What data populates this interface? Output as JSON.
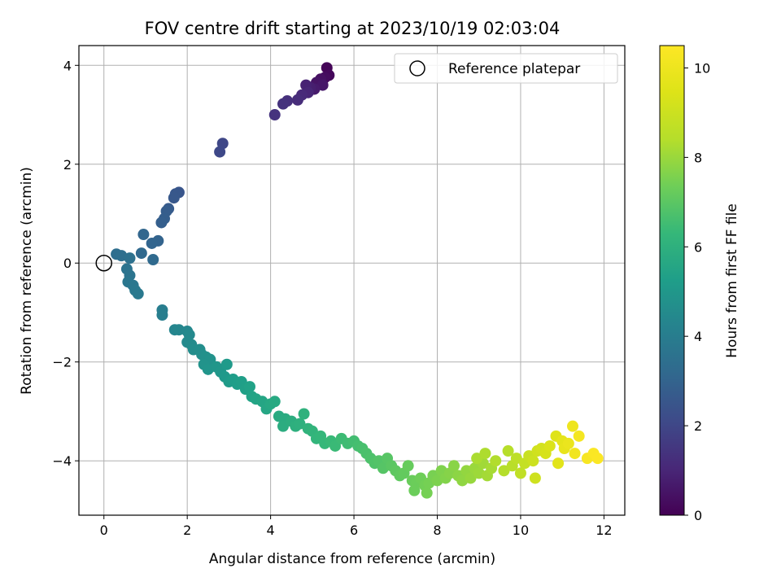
{
  "chart_data": {
    "type": "scatter",
    "title": "FOV centre drift starting at 2023/10/19 02:03:04",
    "xlabel": "Angular distance from reference (arcmin)",
    "ylabel": "Rotation from reference (arcmin)",
    "xlim": [
      -0.6,
      12.5
    ],
    "ylim": [
      -5.1,
      4.4
    ],
    "xticks": [
      0,
      2,
      4,
      6,
      8,
      10,
      12
    ],
    "yticks": [
      -4,
      -2,
      0,
      2,
      4
    ],
    "grid": true,
    "legend": {
      "placement": "upper-right",
      "entries": [
        "Reference platepar"
      ]
    },
    "reference_point": {
      "x": 0,
      "y": 0
    },
    "colorbar": {
      "label": "Hours from first FF file",
      "colormap": "viridis",
      "range": [
        0,
        10.5
      ],
      "ticks": [
        0,
        2,
        4,
        6,
        8,
        10
      ]
    },
    "points": [
      [
        5.35,
        3.95,
        0.1
      ],
      [
        5.4,
        3.8,
        0.2
      ],
      [
        5.3,
        3.75,
        0.3
      ],
      [
        5.2,
        3.72,
        0.4
      ],
      [
        5.1,
        3.65,
        0.5
      ],
      [
        5.25,
        3.6,
        0.6
      ],
      [
        5.05,
        3.52,
        0.7
      ],
      [
        4.95,
        3.55,
        0.8
      ],
      [
        4.85,
        3.6,
        0.9
      ],
      [
        4.9,
        3.45,
        1.0
      ],
      [
        4.75,
        3.4,
        1.1
      ],
      [
        4.65,
        3.3,
        1.2
      ],
      [
        4.4,
        3.28,
        1.3
      ],
      [
        4.3,
        3.22,
        1.35
      ],
      [
        4.1,
        3.0,
        1.4
      ],
      [
        2.85,
        2.42,
        2.0
      ],
      [
        2.78,
        2.25,
        2.05
      ],
      [
        1.8,
        1.43,
        2.5
      ],
      [
        1.72,
        1.4,
        2.55
      ],
      [
        1.68,
        1.32,
        2.6
      ],
      [
        1.55,
        1.1,
        2.7
      ],
      [
        1.5,
        1.05,
        2.75
      ],
      [
        1.45,
        0.9,
        2.8
      ],
      [
        1.38,
        0.82,
        2.85
      ],
      [
        1.3,
        0.45,
        3.0
      ],
      [
        1.15,
        0.4,
        3.05
      ],
      [
        0.95,
        0.58,
        3.1
      ],
      [
        0.9,
        0.2,
        3.2
      ],
      [
        1.18,
        0.07,
        3.25
      ],
      [
        0.3,
        0.18,
        3.4
      ],
      [
        0.42,
        0.15,
        3.45
      ],
      [
        0.62,
        0.1,
        3.5
      ],
      [
        0.55,
        -0.12,
        3.6
      ],
      [
        0.62,
        -0.25,
        3.65
      ],
      [
        0.58,
        -0.38,
        3.7
      ],
      [
        0.7,
        -0.45,
        3.75
      ],
      [
        0.75,
        -0.55,
        3.8
      ],
      [
        0.82,
        -0.62,
        3.85
      ],
      [
        1.4,
        -0.95,
        4.0
      ],
      [
        1.4,
        -1.05,
        4.05
      ],
      [
        1.7,
        -1.35,
        4.3
      ],
      [
        1.8,
        -1.35,
        4.35
      ],
      [
        2.0,
        -1.38,
        4.4
      ],
      [
        2.05,
        -1.45,
        4.45
      ],
      [
        2.0,
        -1.6,
        4.5
      ],
      [
        2.1,
        -1.65,
        4.55
      ],
      [
        2.15,
        -1.75,
        4.6
      ],
      [
        2.3,
        -1.75,
        4.65
      ],
      [
        2.35,
        -1.85,
        4.7
      ],
      [
        2.45,
        -1.9,
        4.75
      ],
      [
        2.55,
        -1.95,
        4.8
      ],
      [
        2.4,
        -2.05,
        4.85
      ],
      [
        2.5,
        -2.15,
        4.9
      ],
      [
        2.7,
        -2.1,
        4.95
      ],
      [
        2.8,
        -2.2,
        5.0
      ],
      [
        2.9,
        -2.3,
        5.05
      ],
      [
        2.95,
        -2.05,
        5.1
      ],
      [
        3.0,
        -2.4,
        5.15
      ],
      [
        3.1,
        -2.35,
        5.2
      ],
      [
        3.2,
        -2.45,
        5.25
      ],
      [
        3.3,
        -2.4,
        5.3
      ],
      [
        3.4,
        -2.55,
        5.35
      ],
      [
        3.5,
        -2.5,
        5.4
      ],
      [
        3.55,
        -2.7,
        5.45
      ],
      [
        3.65,
        -2.75,
        5.5
      ],
      [
        3.8,
        -2.8,
        5.55
      ],
      [
        3.9,
        -2.95,
        5.6
      ],
      [
        4.0,
        -2.85,
        5.65
      ],
      [
        4.1,
        -2.8,
        5.7
      ],
      [
        4.2,
        -3.1,
        5.75
      ],
      [
        4.35,
        -3.15,
        5.8
      ],
      [
        4.3,
        -3.3,
        5.85
      ],
      [
        4.5,
        -3.2,
        5.9
      ],
      [
        4.6,
        -3.3,
        5.95
      ],
      [
        4.7,
        -3.25,
        6.0
      ],
      [
        4.8,
        -3.05,
        6.05
      ],
      [
        4.9,
        -3.35,
        6.1
      ],
      [
        5.0,
        -3.4,
        6.15
      ],
      [
        5.1,
        -3.55,
        6.2
      ],
      [
        5.2,
        -3.5,
        6.25
      ],
      [
        5.3,
        -3.65,
        6.3
      ],
      [
        5.45,
        -3.6,
        6.35
      ],
      [
        5.55,
        -3.7,
        6.4
      ],
      [
        5.7,
        -3.55,
        6.45
      ],
      [
        5.85,
        -3.65,
        6.5
      ],
      [
        6.0,
        -3.6,
        6.55
      ],
      [
        6.1,
        -3.7,
        6.6
      ],
      [
        6.2,
        -3.75,
        6.65
      ],
      [
        6.3,
        -3.85,
        6.7
      ],
      [
        6.4,
        -3.95,
        6.75
      ],
      [
        6.5,
        -4.05,
        6.8
      ],
      [
        6.6,
        -4.0,
        6.85
      ],
      [
        6.7,
        -4.15,
        6.9
      ],
      [
        6.8,
        -3.95,
        6.95
      ],
      [
        6.9,
        -4.1,
        7.0
      ],
      [
        7.0,
        -4.2,
        7.05
      ],
      [
        7.1,
        -4.3,
        7.1
      ],
      [
        7.2,
        -4.25,
        7.15
      ],
      [
        7.3,
        -4.1,
        7.2
      ],
      [
        7.4,
        -4.4,
        7.25
      ],
      [
        7.5,
        -4.45,
        7.3
      ],
      [
        7.6,
        -4.35,
        7.35
      ],
      [
        7.7,
        -4.5,
        7.4
      ],
      [
        7.8,
        -4.45,
        7.45
      ],
      [
        7.9,
        -4.3,
        7.5
      ],
      [
        8.0,
        -4.4,
        7.55
      ],
      [
        8.1,
        -4.2,
        7.6
      ],
      [
        8.2,
        -4.35,
        7.65
      ],
      [
        8.3,
        -4.25,
        7.7
      ],
      [
        8.4,
        -4.1,
        7.75
      ],
      [
        8.5,
        -4.3,
        7.8
      ],
      [
        8.6,
        -4.4,
        7.85
      ],
      [
        8.7,
        -4.2,
        7.9
      ],
      [
        8.8,
        -4.35,
        7.95
      ],
      [
        8.9,
        -4.15,
        8.0
      ],
      [
        9.0,
        -4.25,
        8.05
      ],
      [
        9.1,
        -4.05,
        8.1
      ],
      [
        9.2,
        -4.3,
        8.15
      ],
      [
        9.3,
        -4.15,
        8.2
      ],
      [
        7.45,
        -4.6,
        7.3
      ],
      [
        7.75,
        -4.65,
        7.45
      ],
      [
        8.95,
        -3.95,
        8.25
      ],
      [
        9.15,
        -3.85,
        8.3
      ],
      [
        9.4,
        -4.0,
        8.35
      ],
      [
        9.6,
        -4.2,
        8.4
      ],
      [
        9.7,
        -3.8,
        8.45
      ],
      [
        9.8,
        -4.1,
        8.5
      ],
      [
        9.9,
        -3.95,
        8.6
      ],
      [
        10.0,
        -4.25,
        8.7
      ],
      [
        10.1,
        -4.05,
        8.8
      ],
      [
        10.2,
        -3.9,
        8.9
      ],
      [
        10.3,
        -4.0,
        9.0
      ],
      [
        10.35,
        -4.35,
        9.05
      ],
      [
        10.4,
        -3.8,
        9.1
      ],
      [
        10.5,
        -3.75,
        9.2
      ],
      [
        10.6,
        -3.85,
        9.3
      ],
      [
        10.7,
        -3.7,
        9.4
      ],
      [
        10.85,
        -3.5,
        9.5
      ],
      [
        10.9,
        -4.05,
        9.6
      ],
      [
        11.0,
        -3.6,
        9.7
      ],
      [
        11.05,
        -3.75,
        9.8
      ],
      [
        11.15,
        -3.65,
        9.9
      ],
      [
        11.25,
        -3.3,
        10.0
      ],
      [
        11.3,
        -3.85,
        10.1
      ],
      [
        11.4,
        -3.5,
        10.2
      ],
      [
        11.6,
        -3.95,
        10.3
      ],
      [
        11.75,
        -3.85,
        10.4
      ],
      [
        11.85,
        -3.95,
        10.45
      ]
    ]
  }
}
